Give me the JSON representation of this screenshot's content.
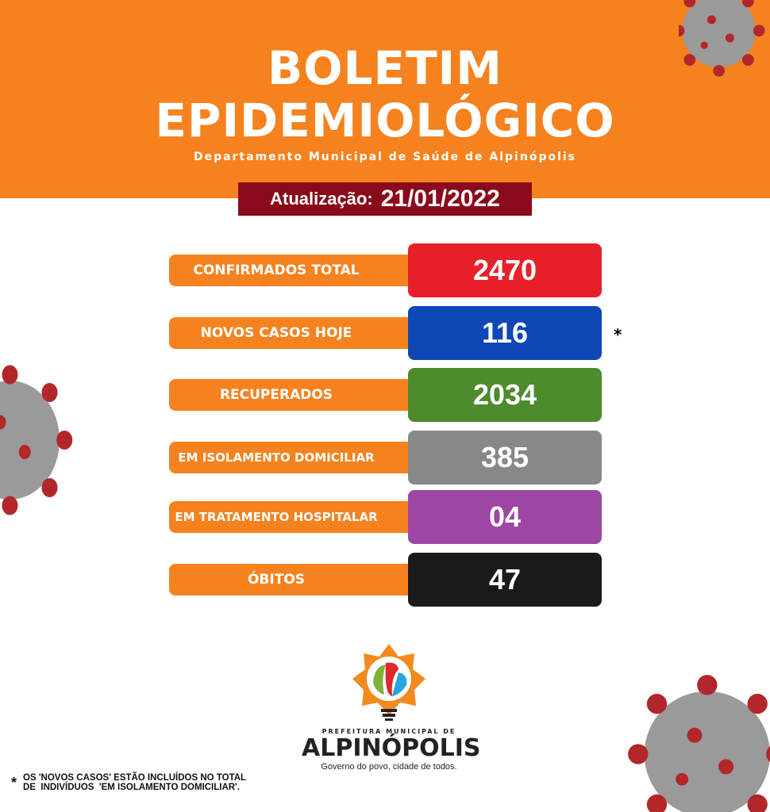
{
  "header": {
    "title_line1": "BOLETIM",
    "title_line2": "EPIDEMIOLÓGICO",
    "subtitle": "Departamento Municipal de Saúde de Alpinópolis"
  },
  "update": {
    "label": "Atualização:",
    "date": "21/01/2022"
  },
  "stats": [
    {
      "label": "CONFIRMADOS TOTAL",
      "value": "2470",
      "color": "#e8202a"
    },
    {
      "label": "NOVOS CASOS HOJE",
      "value": "116",
      "color": "#0f47b5"
    },
    {
      "label": "RECUPERADOS",
      "value": "2034",
      "color": "#4e8b2c"
    },
    {
      "label": "EM ISOLAMENTO DOMICILIAR",
      "value": "385",
      "color": "#888888"
    },
    {
      "label": "EM TRATAMENTO HOSPITALAR",
      "value": "04",
      "color": "#9d46a4"
    },
    {
      "label": "ÓBITOS",
      "value": "47",
      "color": "#1a1a1a"
    }
  ],
  "asterisk": "*",
  "logo": {
    "prefix": "PREFEITURA MUNICIPAL DE",
    "city": "ALPINÓPOLIS",
    "motto": "Governo do povo, cidade de todos."
  },
  "note": {
    "mark": "*",
    "line1": "OS 'NOVOS CASOS' ESTÃO INCLUÍDOS NO TOTAL",
    "line2": "DE  INDIVÍDUOS  'EM ISOLAMENTO DOMICILIAR'."
  }
}
